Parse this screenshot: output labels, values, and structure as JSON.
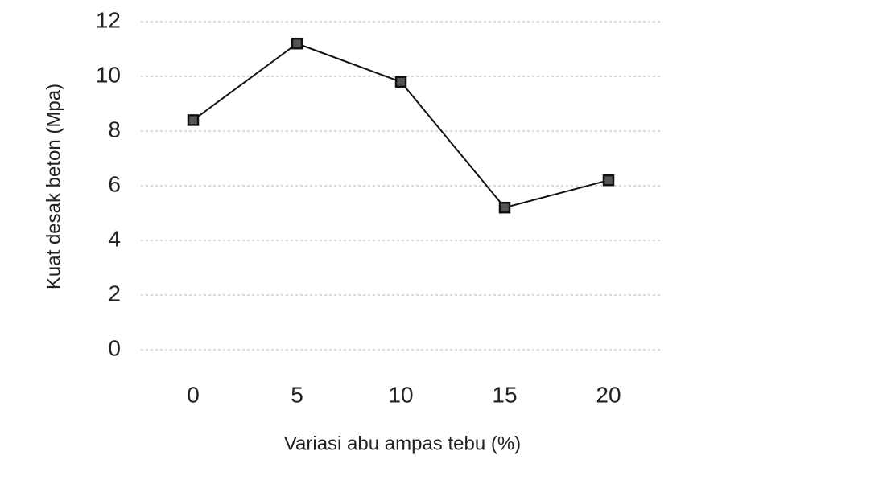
{
  "chart_data": {
    "type": "line",
    "y_label": "Kuat desak beton (Mpa)",
    "x_label": "Variasi abu ampas tebu  (%)",
    "categories": [
      "0",
      "5",
      "10",
      "15",
      "20"
    ],
    "series": [
      {
        "name": "Kuat desak beton",
        "color": "#111111",
        "values": [
          8.4,
          11.2,
          9.8,
          5.2,
          6.2
        ]
      }
    ],
    "ylim": [
      0,
      12
    ],
    "yticks": [
      0,
      2,
      4,
      6,
      8,
      10,
      12
    ],
    "grid": true
  }
}
